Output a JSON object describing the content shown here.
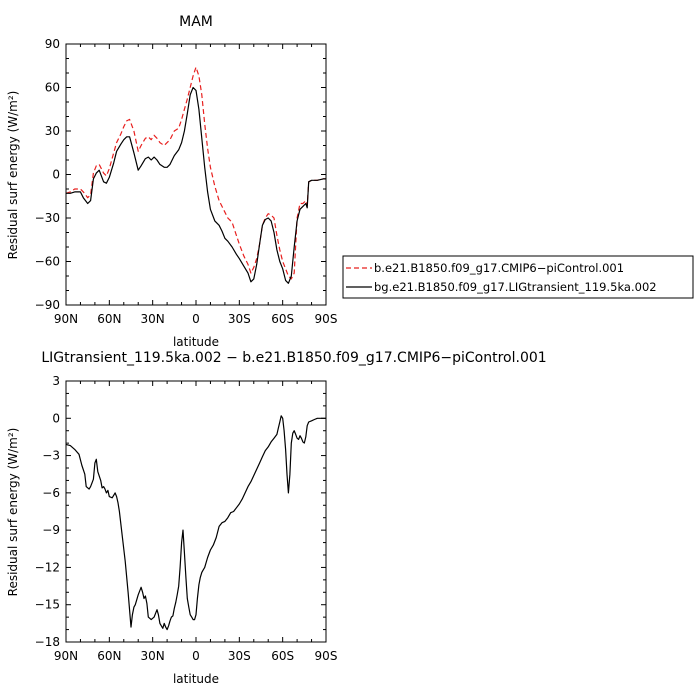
{
  "chart_data": [
    {
      "type": "line",
      "title": "MAM",
      "xlabel": "latitude",
      "ylabel": "Residual surf energy (W/m²)",
      "xlim": [
        90,
        -90
      ],
      "ylim": [
        -90,
        90
      ],
      "yticks": [
        90,
        60,
        30,
        0,
        -30,
        -60,
        -90
      ],
      "yticklabels": [
        "90",
        "60",
        "30",
        "0",
        "−30",
        "−60",
        "−90"
      ],
      "xticks": [
        90,
        60,
        30,
        0,
        -30,
        -60,
        -90
      ],
      "xticklabels": [
        "90N",
        "60N",
        "30N",
        "0",
        "30S",
        "60S",
        "90S"
      ],
      "legend_position": "right",
      "series": [
        {
          "name": "b.e21.B1850.f09_g17.CMIP6−piControl.001",
          "color": "#e8201f",
          "dash": "dashed",
          "x": [
            90,
            87,
            84,
            80,
            78,
            75,
            73,
            71,
            69,
            67,
            64,
            62,
            60,
            57,
            55,
            52,
            50,
            48,
            46,
            43,
            40,
            38,
            35,
            33,
            31,
            29,
            27,
            25,
            22,
            20,
            18,
            15,
            12,
            10,
            8,
            6,
            4,
            2,
            0,
            -2,
            -4,
            -6,
            -8,
            -10,
            -13,
            -16,
            -18,
            -20,
            -22,
            -25,
            -28,
            -30,
            -33,
            -36,
            -38,
            -40,
            -42,
            -44,
            -46,
            -48,
            -50,
            -52,
            -54,
            -56,
            -58,
            -60,
            -62,
            -64,
            -66,
            -68,
            -70,
            -72,
            -74,
            -76,
            -77,
            -78,
            -80,
            -84,
            -88,
            -90
          ],
          "y": [
            -13,
            -12,
            -10,
            -10,
            -12,
            -16,
            -14,
            1,
            6,
            7,
            1,
            -1,
            4,
            15,
            22,
            28,
            33,
            37,
            38,
            30,
            16,
            20,
            25,
            26,
            24,
            27,
            25,
            22,
            20,
            22,
            24,
            30,
            32,
            38,
            45,
            52,
            60,
            68,
            74,
            68,
            55,
            35,
            18,
            5,
            -8,
            -18,
            -22,
            -26,
            -30,
            -33,
            -42,
            -48,
            -56,
            -62,
            -68,
            -64,
            -58,
            -48,
            -35,
            -30,
            -27,
            -28,
            -30,
            -42,
            -52,
            -60,
            -65,
            -70,
            -72,
            -68,
            -30,
            -20,
            -20,
            -18,
            -21,
            -5,
            -4,
            -4,
            -3,
            -3
          ]
        },
        {
          "name": "bg.e21.B1850.f09_g17.LIGtransient_119.5ka.002",
          "color": "#000000",
          "dash": "solid",
          "x": [
            90,
            87,
            84,
            80,
            78,
            75,
            73,
            71,
            69,
            67,
            64,
            62,
            60,
            57,
            55,
            52,
            50,
            48,
            46,
            43,
            40,
            38,
            35,
            33,
            31,
            29,
            27,
            25,
            22,
            20,
            18,
            15,
            12,
            10,
            8,
            6,
            4,
            2,
            0,
            -2,
            -4,
            -6,
            -8,
            -10,
            -13,
            -16,
            -18,
            -20,
            -22,
            -25,
            -28,
            -30,
            -33,
            -36,
            -38,
            -40,
            -42,
            -44,
            -46,
            -48,
            -50,
            -52,
            -54,
            -56,
            -58,
            -60,
            -62,
            -64,
            -66,
            -68,
            -70,
            -72,
            -74,
            -76,
            -77,
            -78,
            -80,
            -84,
            -88,
            -90
          ],
          "y": [
            -13,
            -13,
            -12,
            -12,
            -16,
            -20,
            -18,
            -3,
            1,
            3,
            -5,
            -6,
            -2,
            8,
            16,
            21,
            24,
            26,
            26,
            15,
            3,
            6,
            11,
            12,
            10,
            12,
            10,
            7,
            5,
            5,
            7,
            13,
            17,
            22,
            30,
            42,
            55,
            60,
            58,
            45,
            25,
            5,
            -12,
            -24,
            -32,
            -35,
            -39,
            -44,
            -46,
            -50,
            -55,
            -58,
            -63,
            -68,
            -74,
            -72,
            -62,
            -48,
            -35,
            -31,
            -30,
            -32,
            -40,
            -52,
            -60,
            -65,
            -73,
            -75,
            -70,
            -50,
            -32,
            -24,
            -22,
            -20,
            -23,
            -5,
            -4,
            -4,
            -3,
            -3
          ]
        }
      ]
    },
    {
      "type": "line",
      "title": "LIGtransient_119.5ka.002 − b.e21.B1850.f09_g17.CMIP6−piControl.001",
      "xlabel": "latitude",
      "ylabel": "Residual surf energy (W/m²)",
      "xlim": [
        90,
        -90
      ],
      "ylim": [
        -18,
        3
      ],
      "yticks": [
        3,
        0,
        -3,
        -6,
        -9,
        -12,
        -15,
        -18
      ],
      "yticklabels": [
        "3",
        "0",
        "−3",
        "−6",
        "−9",
        "−12",
        "−15",
        "−18"
      ],
      "xticks": [
        90,
        60,
        30,
        0,
        -30,
        -60,
        -90
      ],
      "xticklabels": [
        "90N",
        "60N",
        "30N",
        "0",
        "30S",
        "60S",
        "90S"
      ],
      "series": [
        {
          "color": "#000000",
          "dash": "solid",
          "x": [
            90,
            87,
            84,
            81,
            79,
            77,
            76,
            74,
            73,
            72,
            71,
            70,
            69,
            68,
            66,
            65,
            64,
            63,
            62,
            61,
            60,
            58,
            57,
            56,
            55,
            54,
            53,
            51,
            49,
            47,
            45,
            44,
            43,
            42,
            40,
            38,
            37,
            36,
            35,
            34,
            33,
            31,
            29,
            27,
            26,
            25,
            24,
            23,
            22,
            21,
            20,
            19,
            18,
            17,
            16,
            15,
            14,
            13,
            12,
            11,
            10,
            9,
            8,
            7,
            6,
            5,
            4,
            3,
            2,
            1,
            0,
            -1,
            -2,
            -3,
            -4,
            -5,
            -6,
            -8,
            -10,
            -12,
            -14,
            -16,
            -18,
            -20,
            -22,
            -24,
            -26,
            -28,
            -30,
            -32,
            -34,
            -36,
            -38,
            -40,
            -42,
            -44,
            -46,
            -48,
            -50,
            -52,
            -54,
            -56,
            -57,
            -58,
            -59,
            -60,
            -61,
            -62,
            -63,
            -64,
            -65,
            -66,
            -67,
            -68,
            -69,
            -70,
            -71,
            -72,
            -73,
            -74,
            -75,
            -76,
            -77,
            -78,
            -80,
            -82,
            -84,
            -86,
            -88,
            -90
          ],
          "y": [
            -2.1,
            -2.2,
            -2.5,
            -2.9,
            -3.8,
            -4.5,
            -5.5,
            -5.7,
            -5.5,
            -5.2,
            -4.9,
            -3.6,
            -3.3,
            -4.3,
            -5.0,
            -5.6,
            -5.5,
            -5.7,
            -6.0,
            -5.8,
            -6.3,
            -6.4,
            -6.2,
            -6.0,
            -6.3,
            -6.8,
            -7.5,
            -9.5,
            -11.5,
            -14.0,
            -16.8,
            -15.8,
            -15.2,
            -15.0,
            -14.2,
            -13.6,
            -14.0,
            -14.5,
            -14.3,
            -14.9,
            -16.0,
            -16.2,
            -16.0,
            -15.4,
            -15.8,
            -16.5,
            -16.7,
            -16.9,
            -16.5,
            -16.8,
            -17.0,
            -16.7,
            -16.3,
            -16.0,
            -15.9,
            -15.3,
            -14.8,
            -14.2,
            -13.5,
            -12.0,
            -10.0,
            -9.0,
            -10.8,
            -12.8,
            -14.5,
            -15.2,
            -15.8,
            -16.0,
            -16.2,
            -16.2,
            -15.8,
            -14.5,
            -13.4,
            -12.8,
            -12.4,
            -12.2,
            -12.0,
            -11.2,
            -10.6,
            -10.2,
            -9.6,
            -8.7,
            -8.4,
            -8.3,
            -8.0,
            -7.6,
            -7.5,
            -7.2,
            -6.9,
            -6.5,
            -6.0,
            -5.5,
            -5.1,
            -4.6,
            -4.1,
            -3.6,
            -3.1,
            -2.6,
            -2.3,
            -1.9,
            -1.6,
            -1.3,
            -0.8,
            -0.3,
            0.2,
            0.0,
            -1.0,
            -2.5,
            -4.5,
            -6.0,
            -4.5,
            -2.0,
            -1.2,
            -1.0,
            -1.3,
            -1.6,
            -1.7,
            -1.4,
            -1.6,
            -1.9,
            -2.0,
            -1.5,
            -0.6,
            -0.3,
            -0.2,
            -0.1,
            0.0,
            0.0,
            0.0,
            0.0
          ]
        }
      ]
    }
  ]
}
